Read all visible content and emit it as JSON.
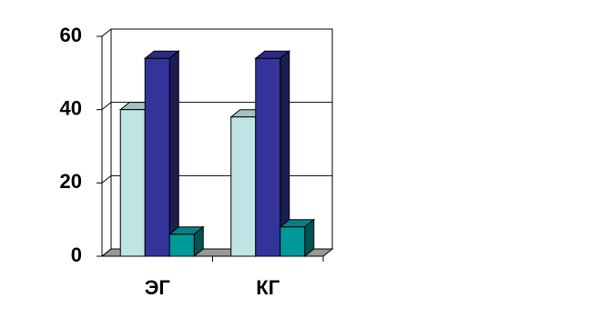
{
  "chart_data": {
    "type": "bar3d",
    "categories": [
      "ЭГ",
      "КГ"
    ],
    "series": [
      {
        "color": "#c0e4e4",
        "values": [
          40,
          38
        ]
      },
      {
        "color": "#333399",
        "values": [
          54,
          54
        ]
      },
      {
        "color": "#009999",
        "values": [
          6,
          8
        ]
      }
    ],
    "ylim": [
      0,
      60
    ],
    "yticks": [
      0,
      20,
      40,
      60
    ],
    "grid": true
  }
}
